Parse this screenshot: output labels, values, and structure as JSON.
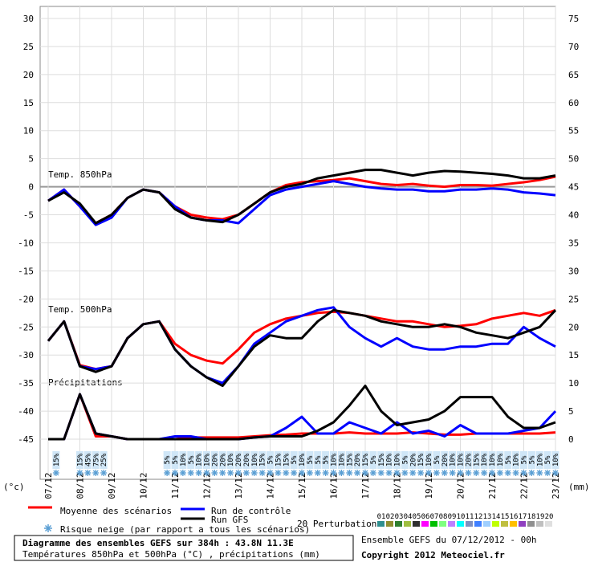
{
  "chart_data": {
    "type": "line",
    "labels": {
      "t850": "Temp. 850hPa",
      "t500": "Temp. 500hPa",
      "precip": "Précipitations",
      "left_unit": "(°c)",
      "right_unit": "(mm)"
    },
    "x": [
      0,
      12,
      24,
      36,
      48,
      60,
      72,
      84,
      96,
      108,
      120,
      132,
      144,
      156,
      168,
      180,
      192,
      204,
      216,
      228,
      240,
      252,
      264,
      276,
      288,
      300,
      312,
      324,
      336,
      348,
      360,
      372,
      384
    ],
    "xlim": [
      0,
      384
    ],
    "xticks": [
      {
        "value": 0,
        "label": "07/12"
      },
      {
        "value": 24,
        "label": "08/12"
      },
      {
        "value": 48,
        "label": "09/12"
      },
      {
        "value": 72,
        "label": "10/12"
      },
      {
        "value": 96,
        "label": "11/12"
      },
      {
        "value": 120,
        "label": "12/12"
      },
      {
        "value": 144,
        "label": "13/12"
      },
      {
        "value": 168,
        "label": "14/12"
      },
      {
        "value": 192,
        "label": "15/12"
      },
      {
        "value": 216,
        "label": "16/12"
      },
      {
        "value": 240,
        "label": "17/12"
      },
      {
        "value": 264,
        "label": "18/12"
      },
      {
        "value": 288,
        "label": "19/12"
      },
      {
        "value": 312,
        "label": "20/12"
      },
      {
        "value": 336,
        "label": "21/12"
      },
      {
        "value": 360,
        "label": "22/12"
      },
      {
        "value": 384,
        "label": "23/12"
      }
    ],
    "ylim": [
      -45,
      30
    ],
    "yticks": [
      30,
      25,
      20,
      15,
      10,
      5,
      0,
      -5,
      -10,
      -15,
      -20,
      -25,
      -30,
      -35,
      -40,
      -45
    ],
    "y2lim": [
      0,
      75
    ],
    "y2ticks": [
      75,
      70,
      65,
      60,
      55,
      50,
      45,
      40,
      35,
      30,
      25,
      20,
      15,
      10,
      5,
      0
    ],
    "grid": true,
    "series": [
      {
        "name": "Moyenne des scénarios",
        "color": "#ff0000",
        "t850": [
          -2.5,
          -0.5,
          -3.5,
          -6.5,
          -5,
          -2,
          -0.5,
          -1,
          -3.5,
          -5,
          -5.5,
          -5.8,
          -5,
          -3,
          -1,
          0.3,
          0.8,
          1,
          1.2,
          1.5,
          1,
          0.5,
          0.3,
          0.5,
          0.2,
          0,
          0.3,
          0.3,
          0.2,
          0.5,
          0.8,
          1.2,
          1.8
        ],
        "t500": [
          -27.5,
          -24,
          -31.8,
          -32.5,
          -32,
          -27,
          -24.5,
          -24,
          -28,
          -30,
          -31,
          -31.5,
          -29,
          -26,
          -24.5,
          -23.5,
          -23,
          -22.5,
          -22.3,
          -22.5,
          -23,
          -23.5,
          -24,
          -24,
          -24.5,
          -25,
          -24.8,
          -24.5,
          -23.5,
          -23,
          -22.5,
          -23,
          -22
        ],
        "precip": [
          0,
          0,
          8,
          0.5,
          0.5,
          0,
          0,
          0,
          0,
          0.3,
          0.3,
          0.3,
          0.3,
          0.5,
          0.7,
          0.8,
          1,
          1,
          1,
          1.2,
          1,
          1,
          1,
          1.2,
          1,
          0.8,
          0.8,
          1,
          1,
          1,
          1,
          1,
          1.2
        ]
      },
      {
        "name": "Run de contrôle",
        "color": "#0000ff",
        "t850": [
          -2.5,
          -0.5,
          -3.5,
          -6.8,
          -5.5,
          -2,
          -0.5,
          -1,
          -3.5,
          -5.5,
          -6,
          -6,
          -6.5,
          -4,
          -1.5,
          -0.5,
          0,
          0.5,
          1,
          0.5,
          0,
          -0.3,
          -0.5,
          -0.5,
          -0.8,
          -0.8,
          -0.5,
          -0.5,
          -0.3,
          -0.5,
          -1,
          -1.2,
          -1.5
        ],
        "t500": [
          -27.5,
          -24,
          -32,
          -32.5,
          -32,
          -27,
          -24.5,
          -24,
          -29,
          -32,
          -34,
          -35,
          -32,
          -28,
          -26,
          -24,
          -23,
          -22,
          -21.5,
          -25,
          -27,
          -28.5,
          -27,
          -28.5,
          -29,
          -29,
          -28.5,
          -28.5,
          -28,
          -28,
          -25,
          -27,
          -28.5
        ],
        "precip": [
          0,
          0,
          8,
          1,
          0.5,
          0,
          0,
          0,
          0.5,
          0.5,
          0,
          0,
          0,
          0.3,
          0.5,
          2,
          4,
          1,
          1,
          3,
          2,
          1,
          3,
          1,
          1.5,
          0.5,
          2.5,
          1,
          1,
          1,
          1.5,
          2,
          5
        ]
      },
      {
        "name": "Run GFS",
        "color": "#000000",
        "t850": [
          -2.5,
          -1,
          -3,
          -6.5,
          -5,
          -2,
          -0.5,
          -1,
          -4,
          -5.5,
          -6,
          -6.3,
          -5,
          -3,
          -1,
          0,
          0.5,
          1.5,
          2,
          2.5,
          3,
          3,
          2.5,
          2,
          2.5,
          2.8,
          2.7,
          2.5,
          2.3,
          2,
          1.5,
          1.5,
          2
        ],
        "t500": [
          -27.5,
          -24,
          -32,
          -33,
          -32,
          -27,
          -24.5,
          -24,
          -29,
          -32,
          -34,
          -35.5,
          -32,
          -28.5,
          -26.5,
          -27,
          -27,
          -24,
          -22,
          -22.5,
          -23,
          -24,
          -24.5,
          -25,
          -25,
          -24.5,
          -25,
          -26,
          -26.5,
          -27,
          -26,
          -25,
          -22
        ],
        "precip": [
          0,
          0,
          8,
          1,
          0.5,
          0,
          0,
          0,
          0,
          0,
          0,
          0,
          0,
          0.3,
          0.5,
          0.5,
          0.5,
          1.5,
          3,
          6,
          9.5,
          5,
          2.5,
          3,
          3.5,
          5,
          7.5,
          7.5,
          7.5,
          4,
          2,
          2,
          3
        ]
      }
    ],
    "snow_risk": {
      "label": "Risque neige (par rapport a tous les scénarios)",
      "x": [
        6,
        24,
        30,
        36,
        42,
        90,
        96,
        102,
        108,
        114,
        120,
        126,
        132,
        138,
        144,
        150,
        156,
        162,
        168,
        174,
        180,
        186,
        192,
        198,
        204,
        210,
        216,
        222,
        228,
        234,
        240,
        246,
        252,
        258,
        264,
        270,
        276,
        282,
        288,
        294,
        300,
        306,
        312,
        318,
        324,
        330,
        336,
        342,
        348,
        354,
        360,
        366,
        372,
        378,
        384
      ],
      "values": [
        15,
        15,
        45,
        75,
        25,
        5,
        5,
        10,
        5,
        10,
        10,
        20,
        20,
        10,
        20,
        20,
        10,
        15,
        5,
        15,
        15,
        5,
        10,
        5,
        5,
        5,
        10,
        10,
        15,
        20,
        15,
        5,
        15,
        10,
        10,
        5,
        20,
        15,
        10,
        5,
        20,
        10,
        10,
        20,
        15,
        10,
        10,
        10,
        5,
        10,
        5,
        5,
        10,
        5,
        10
      ],
      "value_labels": [
        "15%",
        "15%",
        "45%",
        "75%",
        "25%",
        "5%",
        "5%",
        "10%",
        "5%",
        "10%",
        "10%",
        "20%",
        "20%",
        "10%",
        "20%",
        "20%",
        "10%",
        "15%",
        "5%",
        "15%",
        "15%",
        "5%",
        "10%",
        "5%",
        "5%",
        "5%",
        "10%",
        "10%",
        "15%",
        "20%",
        "15%",
        "5%",
        "15%",
        "10%",
        "10%",
        "5%",
        "20%",
        "15%",
        "10%",
        "5%",
        "20%",
        "10%",
        "10%",
        "20%",
        "15%",
        "10%",
        "10%",
        "10%",
        "5%",
        "10%",
        "5%",
        "5%",
        "10%",
        "5%",
        "10%"
      ]
    },
    "perturbations": {
      "label": "20 Perturbations",
      "members": [
        {
          "name": "01",
          "color": "#2f8f8f"
        },
        {
          "name": "02",
          "color": "#8f8f2f"
        },
        {
          "name": "03",
          "color": "#2f7f2f"
        },
        {
          "name": "04",
          "color": "#9fbf3f"
        },
        {
          "name": "05",
          "color": "#2f2f2f"
        },
        {
          "name": "06",
          "color": "#ff00ff"
        },
        {
          "name": "07",
          "color": "#00bf00"
        },
        {
          "name": "08",
          "color": "#7fff7f"
        },
        {
          "name": "09",
          "color": "#bf7fff"
        },
        {
          "name": "10",
          "color": "#00ffff"
        },
        {
          "name": "11",
          "color": "#7f8fbf"
        },
        {
          "name": "12",
          "color": "#3f7fff"
        },
        {
          "name": "13",
          "color": "#9fcfff"
        },
        {
          "name": "14",
          "color": "#bfff00"
        },
        {
          "name": "15",
          "color": "#bfbf3f"
        },
        {
          "name": "16",
          "color": "#ffbf00"
        },
        {
          "name": "17",
          "color": "#8f3fbf"
        },
        {
          "name": "18",
          "color": "#8f8f8f"
        },
        {
          "name": "19",
          "color": "#bfbfbf"
        },
        {
          "name": "20",
          "color": "#dfdfdf"
        }
      ]
    },
    "info": {
      "title": "Diagramme des ensembles GEFS sur 384h : 43.8N 11.3E",
      "subtitle": "Températures 850hPa et 500hPa (°C) , précipitations (mm)",
      "run": "Ensemble GEFS du 07/12/2012 - 00h",
      "copyright": "Copyright 2012 Meteociel.fr"
    }
  }
}
